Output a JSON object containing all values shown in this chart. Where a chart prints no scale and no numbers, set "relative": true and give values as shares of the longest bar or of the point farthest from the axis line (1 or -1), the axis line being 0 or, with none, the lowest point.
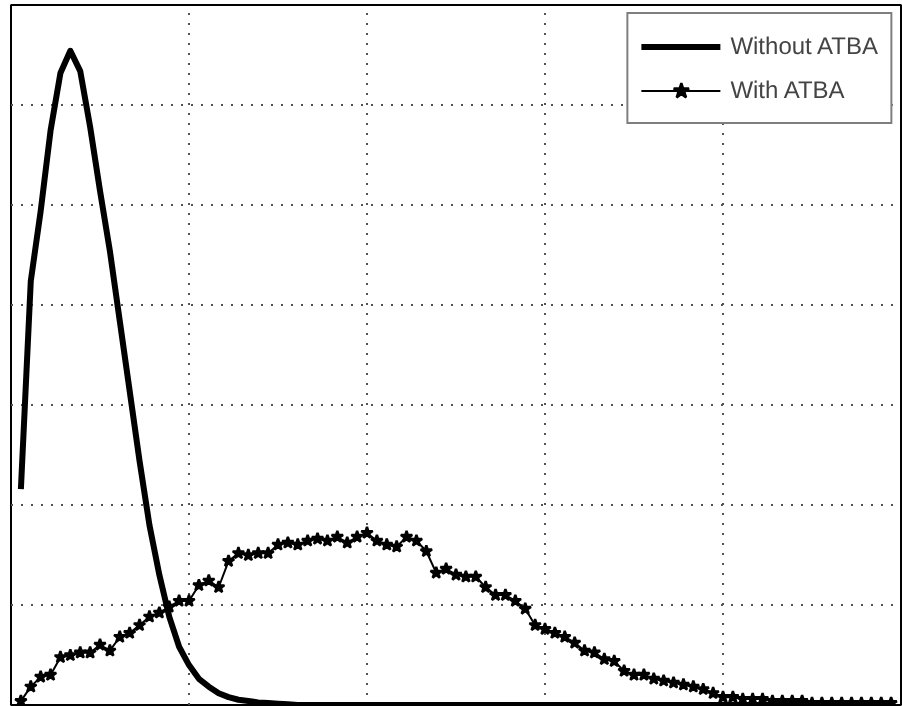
{
  "chart_data": {
    "type": "line",
    "relative": true,
    "grid": true,
    "legend": "top right",
    "categories": [
      null,
      null,
      null,
      null,
      null,
      null,
      null,
      null,
      null,
      null,
      null,
      null,
      null,
      null,
      null,
      null,
      null,
      null,
      null,
      null,
      null,
      null,
      null,
      null,
      null,
      null,
      null,
      null,
      null,
      null,
      null,
      null,
      null,
      null,
      null,
      null,
      null,
      null,
      null,
      null,
      null,
      null,
      null,
      null,
      null,
      null,
      null,
      null,
      null,
      null,
      null,
      null,
      null,
      null,
      null,
      null,
      null,
      null,
      null,
      null,
      null,
      null,
      null,
      null,
      null,
      null,
      null,
      null,
      null,
      null,
      null,
      null,
      null,
      null,
      null,
      null,
      null,
      null,
      null,
      null,
      null,
      null,
      null,
      null,
      null,
      null,
      null,
      null,
      null
    ],
    "series": [
      {
        "name": "Without ATBA",
        "color": "#000000",
        "marker": "none",
        "values": [
          0.33,
          0.648,
          0.755,
          0.878,
          0.966,
          1.0,
          0.969,
          0.884,
          0.786,
          0.694,
          0.587,
          0.48,
          0.373,
          0.275,
          0.199,
          0.135,
          0.089,
          0.061,
          0.04,
          0.028,
          0.018,
          0.012,
          0.008,
          0.006,
          0.004,
          0.003,
          0.002,
          0.001,
          0,
          0,
          0,
          0,
          0,
          0,
          0,
          0,
          0,
          0,
          0,
          0,
          0,
          0,
          0,
          0,
          0,
          0,
          0,
          0,
          0,
          0,
          0,
          0,
          0,
          0,
          0,
          0,
          0,
          0,
          0,
          0,
          0,
          0,
          0,
          0,
          0,
          0,
          0,
          0,
          0,
          0,
          0,
          0,
          0,
          0,
          0,
          0,
          0,
          0,
          0,
          0,
          0,
          0,
          0,
          0,
          0,
          0,
          0,
          0,
          0
        ]
      },
      {
        "name": "With ATBA",
        "color": "#000000",
        "marker": "star",
        "values": [
          0.006,
          0.028,
          0.043,
          0.046,
          0.073,
          0.076,
          0.08,
          0.08,
          0.092,
          0.083,
          0.104,
          0.11,
          0.122,
          0.135,
          0.141,
          0.15,
          0.159,
          0.159,
          0.183,
          0.19,
          0.18,
          0.22,
          0.232,
          0.229,
          0.232,
          0.232,
          0.245,
          0.248,
          0.245,
          0.251,
          0.254,
          0.251,
          0.257,
          0.248,
          0.257,
          0.263,
          0.251,
          0.245,
          0.242,
          0.257,
          0.251,
          0.235,
          0.202,
          0.208,
          0.199,
          0.196,
          0.196,
          0.18,
          0.168,
          0.168,
          0.159,
          0.147,
          0.122,
          0.116,
          0.11,
          0.104,
          0.095,
          0.083,
          0.08,
          0.07,
          0.067,
          0.052,
          0.046,
          0.046,
          0.04,
          0.037,
          0.034,
          0.031,
          0.028,
          0.024,
          0.018,
          0.012,
          0.012,
          0.009,
          0.009,
          0.009,
          0.006,
          0.006,
          0.006,
          0.006,
          0.003,
          0.003,
          0.003,
          0.003,
          0.003,
          0.003,
          0.003,
          0.003,
          0.003
        ]
      }
    ]
  }
}
